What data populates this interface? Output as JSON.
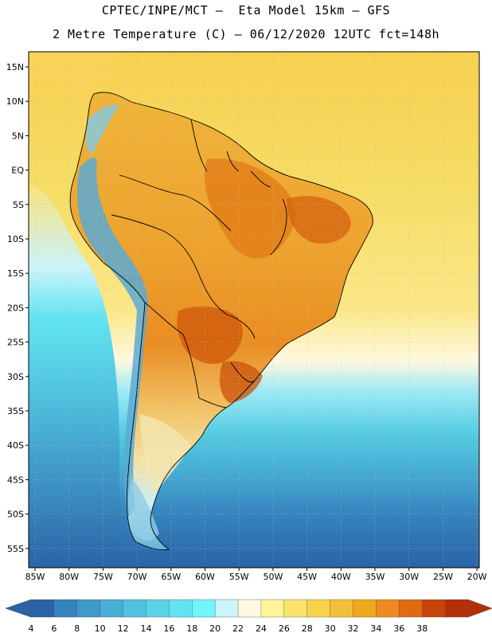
{
  "header": {
    "line1": "CPTEC/INPE/MCT –  Eta Model 15km – GFS",
    "line2": "2 Metre Temperature (C) – 06/12/2020 12UTC fct=148h"
  },
  "axes": {
    "lat_labels": [
      "15N",
      "10N",
      "5N",
      "EQ",
      "5S",
      "10S",
      "15S",
      "20S",
      "25S",
      "30S",
      "35S",
      "40S",
      "45S",
      "50S",
      "55S"
    ],
    "lon_labels": [
      "85W",
      "80W",
      "75W",
      "70W",
      "65W",
      "60W",
      "55W",
      "50W",
      "45W",
      "40W",
      "35W",
      "30W",
      "25W",
      "20W"
    ]
  },
  "colorbar": {
    "ticks": [
      "4",
      "6",
      "8",
      "10",
      "12",
      "14",
      "16",
      "18",
      "20",
      "22",
      "24",
      "26",
      "28",
      "30",
      "32",
      "34",
      "36",
      "38"
    ],
    "colors": [
      "#2a63a6",
      "#3582bd",
      "#3f99c8",
      "#48aed5",
      "#50c2df",
      "#5ad3e7",
      "#62e4f0",
      "#6ff5fb",
      "#cbf4fb",
      "#fff8e0",
      "#fff39a",
      "#f9e36e",
      "#f7d34b",
      "#f2bf38",
      "#f2a81d",
      "#ee8a20",
      "#e06a12",
      "#c8430a",
      "#b52f08"
    ]
  }
}
